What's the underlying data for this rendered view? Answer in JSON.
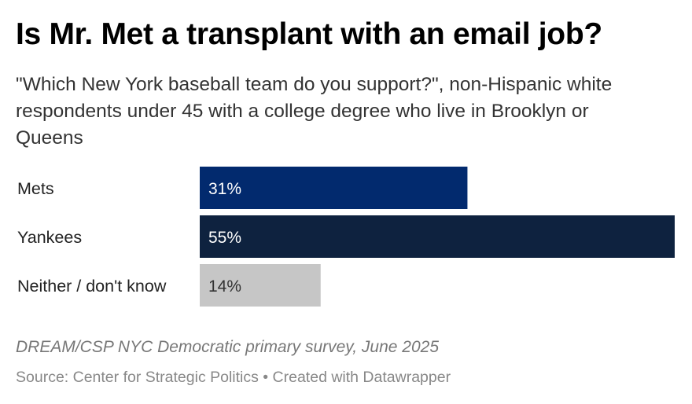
{
  "title": "Is Mr. Met a transplant with an email job?",
  "subtitle": "\"Which New York baseball team do you support?\", non-Hispanic white respondents under 45 with a college degree who live in Brooklyn or Queens",
  "note": "DREAM/CSP NYC Democratic primary survey, June 2025",
  "source": "Source: Center for Strategic Politics • Created with Datawrapper",
  "chart_data": {
    "type": "bar",
    "orientation": "horizontal",
    "title": "Is Mr. Met a transplant with an email job?",
    "categories": [
      "Mets",
      "Yankees",
      "Neither / don't know"
    ],
    "values": [
      31,
      55,
      14
    ],
    "value_labels": [
      "31%",
      "55%",
      "14%"
    ],
    "unit": "%",
    "xlim": [
      0,
      55
    ],
    "colors": [
      "#022a6e",
      "#0e223f",
      "#c6c6c6"
    ],
    "label_colors": [
      "#ffffff",
      "#ffffff",
      "#333333"
    ],
    "grid": false,
    "legend": "none"
  }
}
